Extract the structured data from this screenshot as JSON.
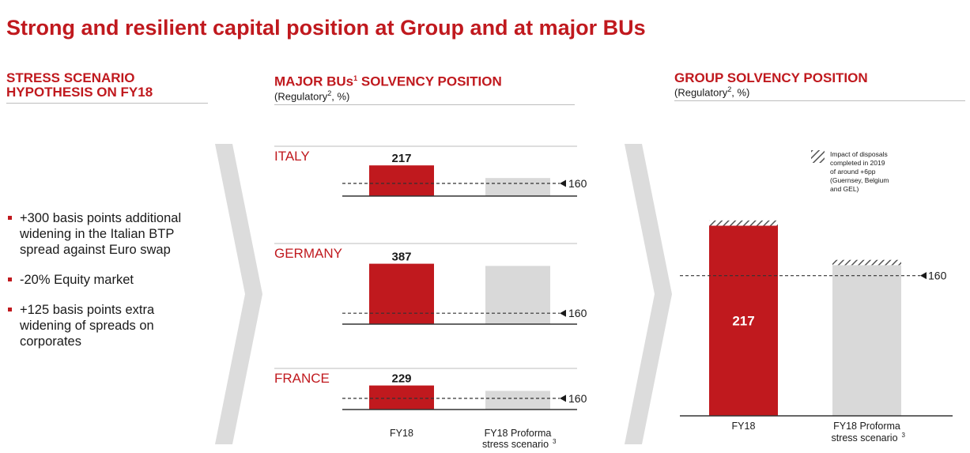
{
  "title": "Strong and resilient capital position at Group and at major BUs",
  "left": {
    "heading_line1": "STRESS SCENARIO",
    "heading_line2": "HYPOTHESIS ON FY18",
    "bullets": [
      "+300 basis points additional widening in the Italian BTP spread against Euro swap",
      "-20% Equity market",
      "+125 basis points extra widening of spreads on corporates"
    ]
  },
  "middle": {
    "heading": "MAJOR BUs",
    "heading_sup": "1",
    "heading_rest": " SOLVENCY POSITION",
    "sub": "(Regulatory",
    "sub_sup": "2",
    "sub_rest": ", %)"
  },
  "right": {
    "heading": "GROUP SOLVENCY POSITION",
    "sub": "(Regulatory",
    "sub_sup": "2",
    "sub_rest": ", %)",
    "legend_label": "Impact of disposals completed in 2019 of around +6pp (Guernsey, Belgium and GEL)"
  },
  "colors": {
    "accent": "#c0191e",
    "bar_fy18": "#c0191e",
    "bar_stress": "#d9d9d9",
    "hatch": "#555555"
  },
  "chart_data": [
    {
      "type": "bar",
      "panel": "ITALY",
      "categories": [
        "FY18",
        "FY18 Proforma stress scenario"
      ],
      "values": [
        217,
        177
      ],
      "labels": [
        "217",
        ""
      ],
      "reference_line": 160,
      "reference_label": "160",
      "ylim": [
        120,
        230
      ]
    },
    {
      "type": "bar",
      "panel": "GERMANY",
      "categories": [
        "FY18",
        "FY18 Proforma stress scenario"
      ],
      "values": [
        387,
        377
      ],
      "labels": [
        "387",
        ""
      ],
      "reference_line": 160,
      "reference_label": "160",
      "ylim": [
        110,
        400
      ]
    },
    {
      "type": "bar",
      "panel": "FRANCE",
      "categories": [
        "FY18",
        "FY18 Proforma stress scenario"
      ],
      "values": [
        229,
        200
      ],
      "labels": [
        "229",
        ""
      ],
      "reference_line": 160,
      "reference_label": "160",
      "ylim": [
        100,
        240
      ]
    },
    {
      "type": "bar",
      "panel": "GROUP",
      "categories": [
        "FY18",
        "FY18 Proforma stress scenario"
      ],
      "category_labels": [
        [
          "FY18"
        ],
        [
          "FY18 Proforma",
          "stress scenario",
          "3"
        ]
      ],
      "values": [
        217,
        172
      ],
      "disposal_impact": [
        6,
        6
      ],
      "labels": [
        "217",
        ""
      ],
      "reference_line": 160,
      "reference_label": "160",
      "ylim": [
        0,
        240
      ]
    }
  ],
  "x_labels": {
    "fy18": "FY18",
    "stress_line1": "FY18 Proforma",
    "stress_line2": "stress scenario",
    "stress_sup": "3"
  }
}
